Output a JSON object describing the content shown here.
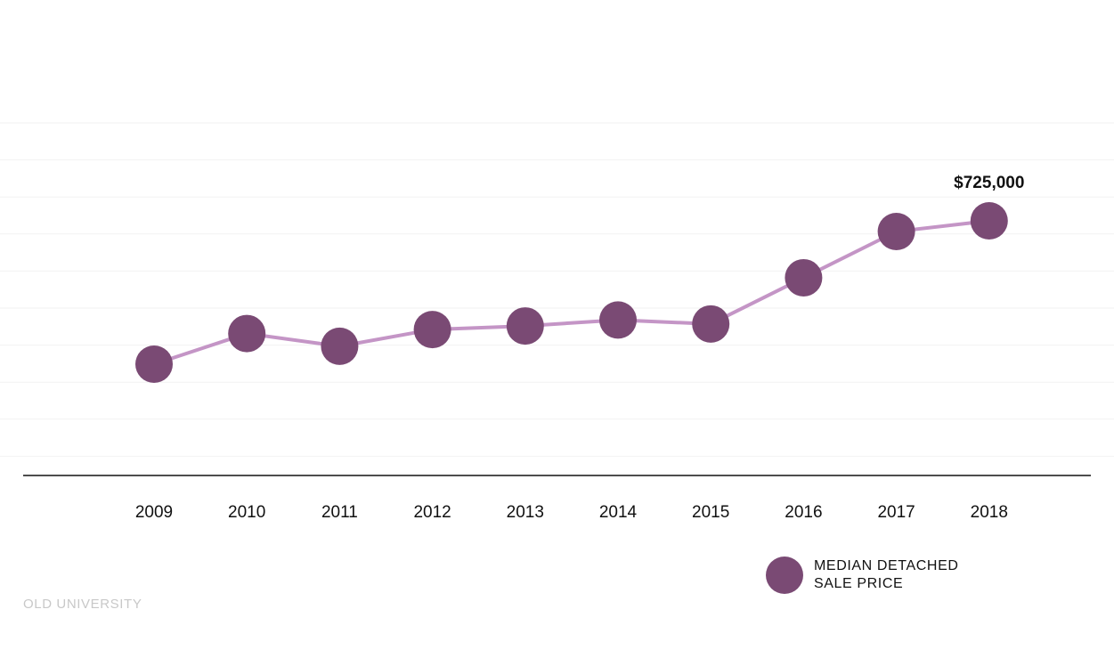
{
  "chart_data": {
    "type": "line",
    "categories": [
      "2009",
      "2010",
      "2011",
      "2012",
      "2013",
      "2014",
      "2015",
      "2016",
      "2017",
      "2018"
    ],
    "series": [
      {
        "name": "MEDIAN DETACHED SALE PRICE",
        "values": [
          365000,
          442000,
          410000,
          452000,
          461000,
          476000,
          466000,
          582000,
          725000,
          725000
        ]
      }
    ],
    "annotations": [
      {
        "category": "2018",
        "text": "$725,000"
      }
    ],
    "xlabel": "",
    "ylabel": "",
    "grid": true,
    "legend": "bottom-right",
    "colors": {
      "marker": "#7a4a74",
      "line": "#c495c6",
      "grid": "#f2f2f2",
      "axis": "#111111"
    }
  },
  "legend": {
    "line1": "MEDIAN DETACHED",
    "line2": "SALE PRICE"
  },
  "source": "OLD UNIVERSITY"
}
